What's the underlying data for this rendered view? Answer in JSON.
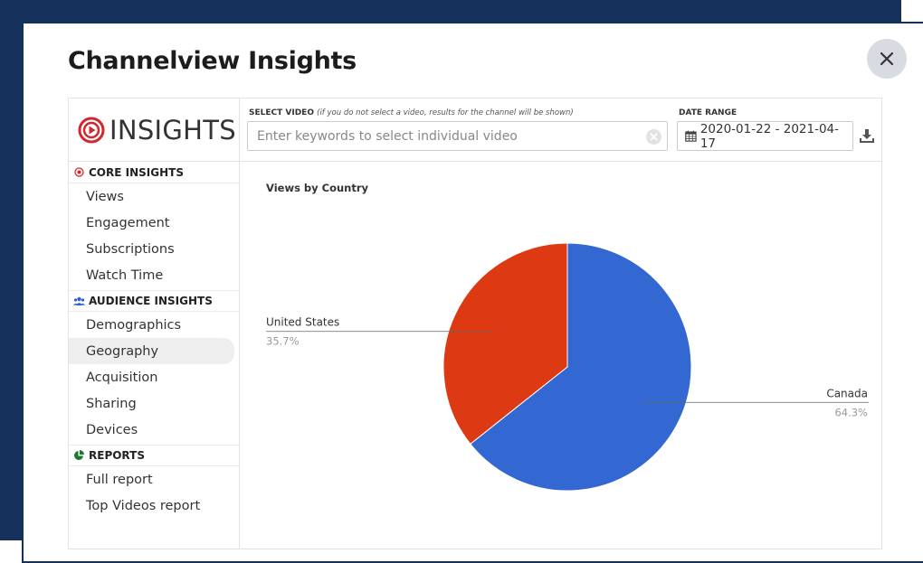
{
  "modal": {
    "title": "Channelview Insights",
    "close_icon": "close-icon"
  },
  "logo": {
    "text": "INSIGHTS",
    "icon": "play-target-icon",
    "color": "#d0282e"
  },
  "sidebar": {
    "sections": [
      {
        "title": "CORE INSIGHTS",
        "icon": "target-icon",
        "icon_color": "#d0282e",
        "items": [
          {
            "label": "Views"
          },
          {
            "label": "Engagement"
          },
          {
            "label": "Subscriptions"
          },
          {
            "label": "Watch Time"
          }
        ]
      },
      {
        "title": "AUDIENCE INSIGHTS",
        "icon": "users-icon",
        "icon_color": "#2f5dcf",
        "items": [
          {
            "label": "Demographics"
          },
          {
            "label": "Geography",
            "active": true
          },
          {
            "label": "Acquisition"
          },
          {
            "label": "Sharing"
          },
          {
            "label": "Devices"
          }
        ]
      },
      {
        "title": "REPORTS",
        "icon": "pie-chart-icon",
        "icon_color": "#1a7a2e",
        "items": [
          {
            "label": "Full report"
          },
          {
            "label": "Top Videos report"
          }
        ]
      }
    ]
  },
  "filters": {
    "video_label": "SELECT VIDEO",
    "video_hint": "(if you do not select a video, results for the channel will be shown)",
    "video_placeholder": "Enter keywords to select individual video",
    "date_label": "DATE RANGE",
    "date_value": "2020-01-22 - 2021-04-17",
    "calendar_icon": "calendar-icon",
    "download_icon": "download-icon"
  },
  "chart_data": {
    "type": "pie",
    "title": "Views by Country",
    "slices": [
      {
        "label": "Canada",
        "value": 64.3,
        "display": "64.3%",
        "color": "#3367d1"
      },
      {
        "label": "United States",
        "value": 35.7,
        "display": "35.7%",
        "color": "#dd3912"
      }
    ]
  }
}
